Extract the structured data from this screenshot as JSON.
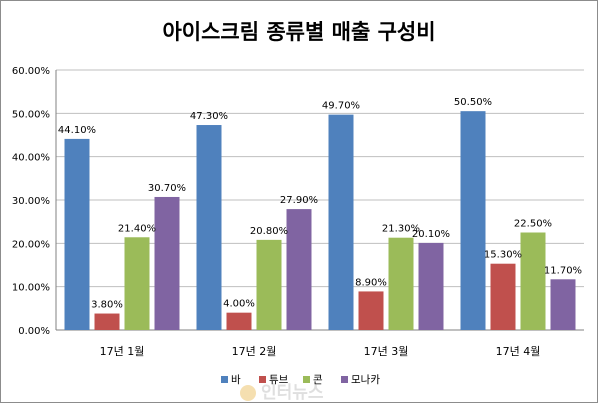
{
  "chart_data": {
    "type": "bar",
    "title": "아이스크림 종류별 매출 구성비",
    "xlabel": "",
    "ylabel": "",
    "categories": [
      "17년 1월",
      "17년 2월",
      "17년 3월",
      "17년 4월"
    ],
    "series": [
      {
        "name": "바",
        "color": "#4f81bd",
        "values": [
          44.1,
          47.3,
          49.7,
          50.5
        ],
        "labels": [
          "44.10%",
          "47.30%",
          "49.70%",
          "50.50%"
        ]
      },
      {
        "name": "튜브",
        "color": "#c0504d",
        "values": [
          3.8,
          4.0,
          8.9,
          15.3
        ],
        "labels": [
          "3.80%",
          "4.00%",
          "8.90%",
          "15.30%"
        ]
      },
      {
        "name": "콘",
        "color": "#9bbb59",
        "values": [
          21.4,
          20.8,
          21.3,
          22.5
        ],
        "labels": [
          "21.40%",
          "20.80%",
          "21.30%",
          "22.50%"
        ]
      },
      {
        "name": "모나카",
        "color": "#8064a2",
        "values": [
          30.7,
          27.9,
          20.1,
          11.7
        ],
        "labels": [
          "30.70%",
          "27.90%",
          "20.10%",
          "11.70%"
        ]
      }
    ],
    "ylim": [
      0,
      60
    ],
    "yticks": [
      0,
      10,
      20,
      30,
      40,
      50,
      60
    ],
    "ytick_labels": [
      "0.00%",
      "10.00%",
      "20.00%",
      "30.00%",
      "40.00%",
      "50.00%",
      "60.00%"
    ],
    "grid": true,
    "legend_position": "bottom"
  },
  "watermark": {
    "text": "인터뉴스"
  }
}
